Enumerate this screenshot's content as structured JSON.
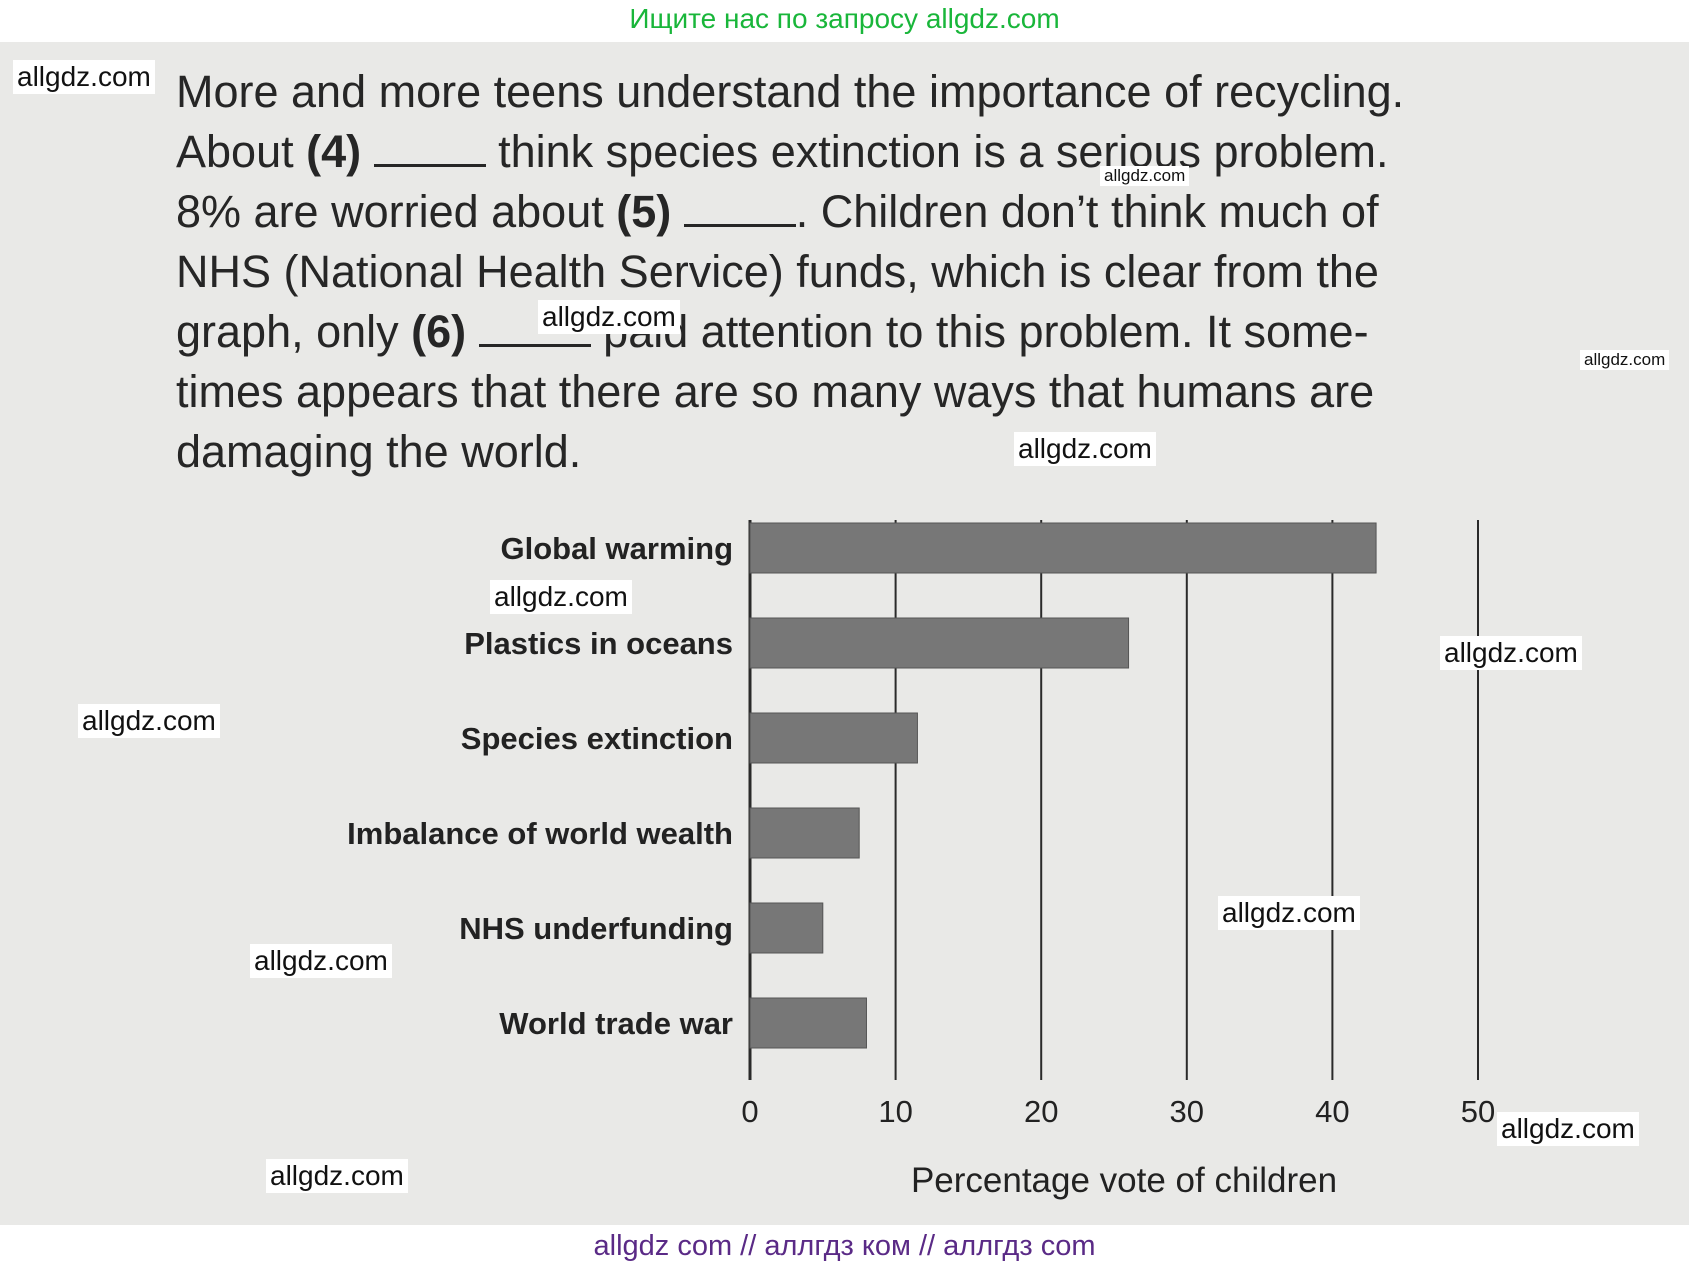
{
  "banner_top": "Ищите нас по запросу allgdz.com",
  "paragraph": {
    "line1": "More and more teens understand the importance of recycling.",
    "line2_a": "About ",
    "line2_b": "(4)",
    "line2_c": " think species extinction is a serious problem.",
    "line3_a": "8% are worried about ",
    "line3_b": "(5)",
    "line3_c": ". Children don’t think much of",
    "line4": "NHS (National Health Service) funds, which is clear from the",
    "line5_a": "graph, only ",
    "line5_b": "(6)",
    "line5_c": " paid attention to this problem. It some-",
    "line6": "times appears that there are so many ways that humans are",
    "line7": "damaging the world."
  },
  "watermarks": [
    "allgdz.com",
    "allgdz.com",
    "allgdz.com",
    "allgdz.com",
    "allgdz.com",
    "allgdz.com",
    "allgdz.com",
    "allgdz.com",
    "allgdz.com",
    "allgdz.com",
    "allgdz.com",
    "allgdz.com"
  ],
  "banner_bottom": "allgdz com  //  аллгдз ком  //  аллгдз com",
  "chart_data": {
    "type": "bar",
    "orientation": "horizontal",
    "categories": [
      "Global warming",
      "Plastics in oceans",
      "Species extinction",
      "Imbalance of world wealth",
      "NHS underfunding",
      "World trade war"
    ],
    "values": [
      43,
      26,
      11.5,
      7.5,
      5,
      8
    ],
    "xlabel": "Percentage vote of children",
    "xlim": [
      0,
      50
    ],
    "xticks": [
      "0",
      "10",
      "20",
      "30",
      "40",
      "50"
    ],
    "grid": true,
    "bar_color": "#777777"
  }
}
